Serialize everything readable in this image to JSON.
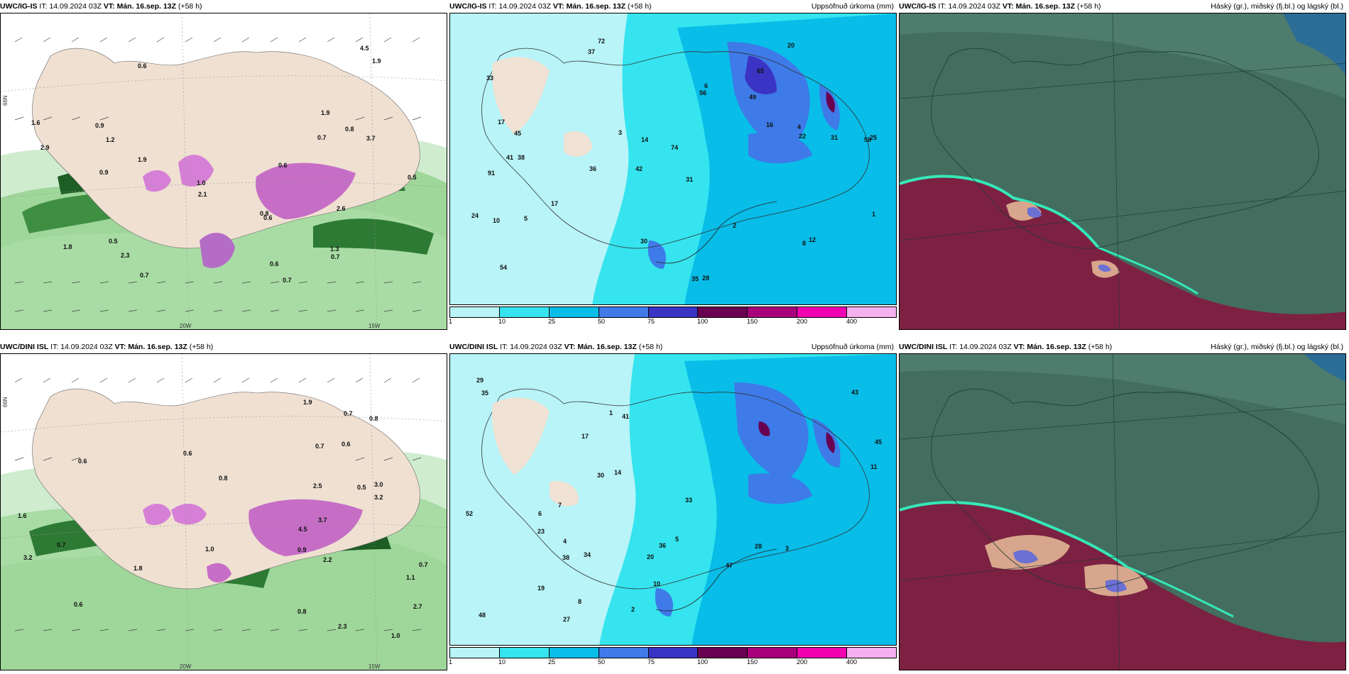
{
  "rows": [
    {
      "model": "UWC/IG-IS",
      "it_label": "IT:",
      "it_value": "14.09.2024 03Z",
      "vt_label": "VT:",
      "vt_value": "Mán. 16.sep. 13Z",
      "lead": "(+58 h)"
    },
    {
      "model": "UWC/DINI ISL",
      "it_label": "IT:",
      "it_value": "14.09.2024 03Z",
      "vt_label": "VT:",
      "vt_value": "Mán. 16.sep. 13Z",
      "lead": "(+58 h)"
    }
  ],
  "precip_title": "Uppsöfnuð úrkoma (mm)",
  "cloud_title": "Háský (gr.), miðský (fj.bl.) og lágský (bl.)",
  "axis": {
    "lat66": "66N",
    "lon20": "20W",
    "lon15": "15W"
  },
  "colorbar": {
    "ticks": [
      "1",
      "10",
      "25",
      "50",
      "75",
      "100",
      "150",
      "200",
      "400"
    ],
    "colors": [
      "#b8f4f8",
      "#35e4ee",
      "#08bde8",
      "#3e7ae8",
      "#3b33c4",
      "#6a0050",
      "#a8007a",
      "#f000b0",
      "#f5b0f0"
    ]
  },
  "map_labels": {
    "wind_top": [
      "0.7",
      "0.6",
      "0.5",
      "0.9",
      "0.8",
      "0.6",
      "0.5",
      "1.9",
      "2.1",
      "2.3",
      "1.8",
      "1.6",
      "1.0",
      "0.8",
      "0.7",
      "4.5",
      "2.9",
      "1.9",
      "2.6",
      "3.7",
      "1.3",
      "0.6",
      "0.7",
      "0.7",
      "0.6",
      "1.9",
      "0.9",
      "1.2"
    ],
    "wind_bottom": [
      "0.9",
      "0.7",
      "0.5",
      "1.1",
      "0.8",
      "0.6",
      "3.0",
      "0.8",
      "2.7",
      "2.3",
      "3.7",
      "4.5",
      "3.2",
      "2.2",
      "1.8",
      "1.0",
      "0.8",
      "0.7",
      "0.7",
      "0.6",
      "1.0",
      "1.6",
      "2.5",
      "1.9",
      "3.2",
      "0.6",
      "0.6",
      "0.7"
    ],
    "precip_top": [
      "72",
      "65",
      "58",
      "42",
      "31",
      "38",
      "33",
      "49",
      "91",
      "56",
      "74",
      "54",
      "37",
      "36",
      "35",
      "28",
      "30",
      "20",
      "16",
      "17",
      "45",
      "41",
      "25",
      "31",
      "24",
      "17",
      "14",
      "22",
      "12",
      "10",
      "8",
      "6",
      "5",
      "3",
      "2",
      "1",
      "4"
    ],
    "precip_bottom": [
      "35",
      "29",
      "52",
      "43",
      "45",
      "47",
      "41",
      "34",
      "48",
      "28",
      "38",
      "33",
      "27",
      "23",
      "36",
      "30",
      "20",
      "19",
      "17",
      "14",
      "11",
      "10",
      "8",
      "7",
      "6",
      "5",
      "4",
      "3",
      "2",
      "1"
    ]
  }
}
